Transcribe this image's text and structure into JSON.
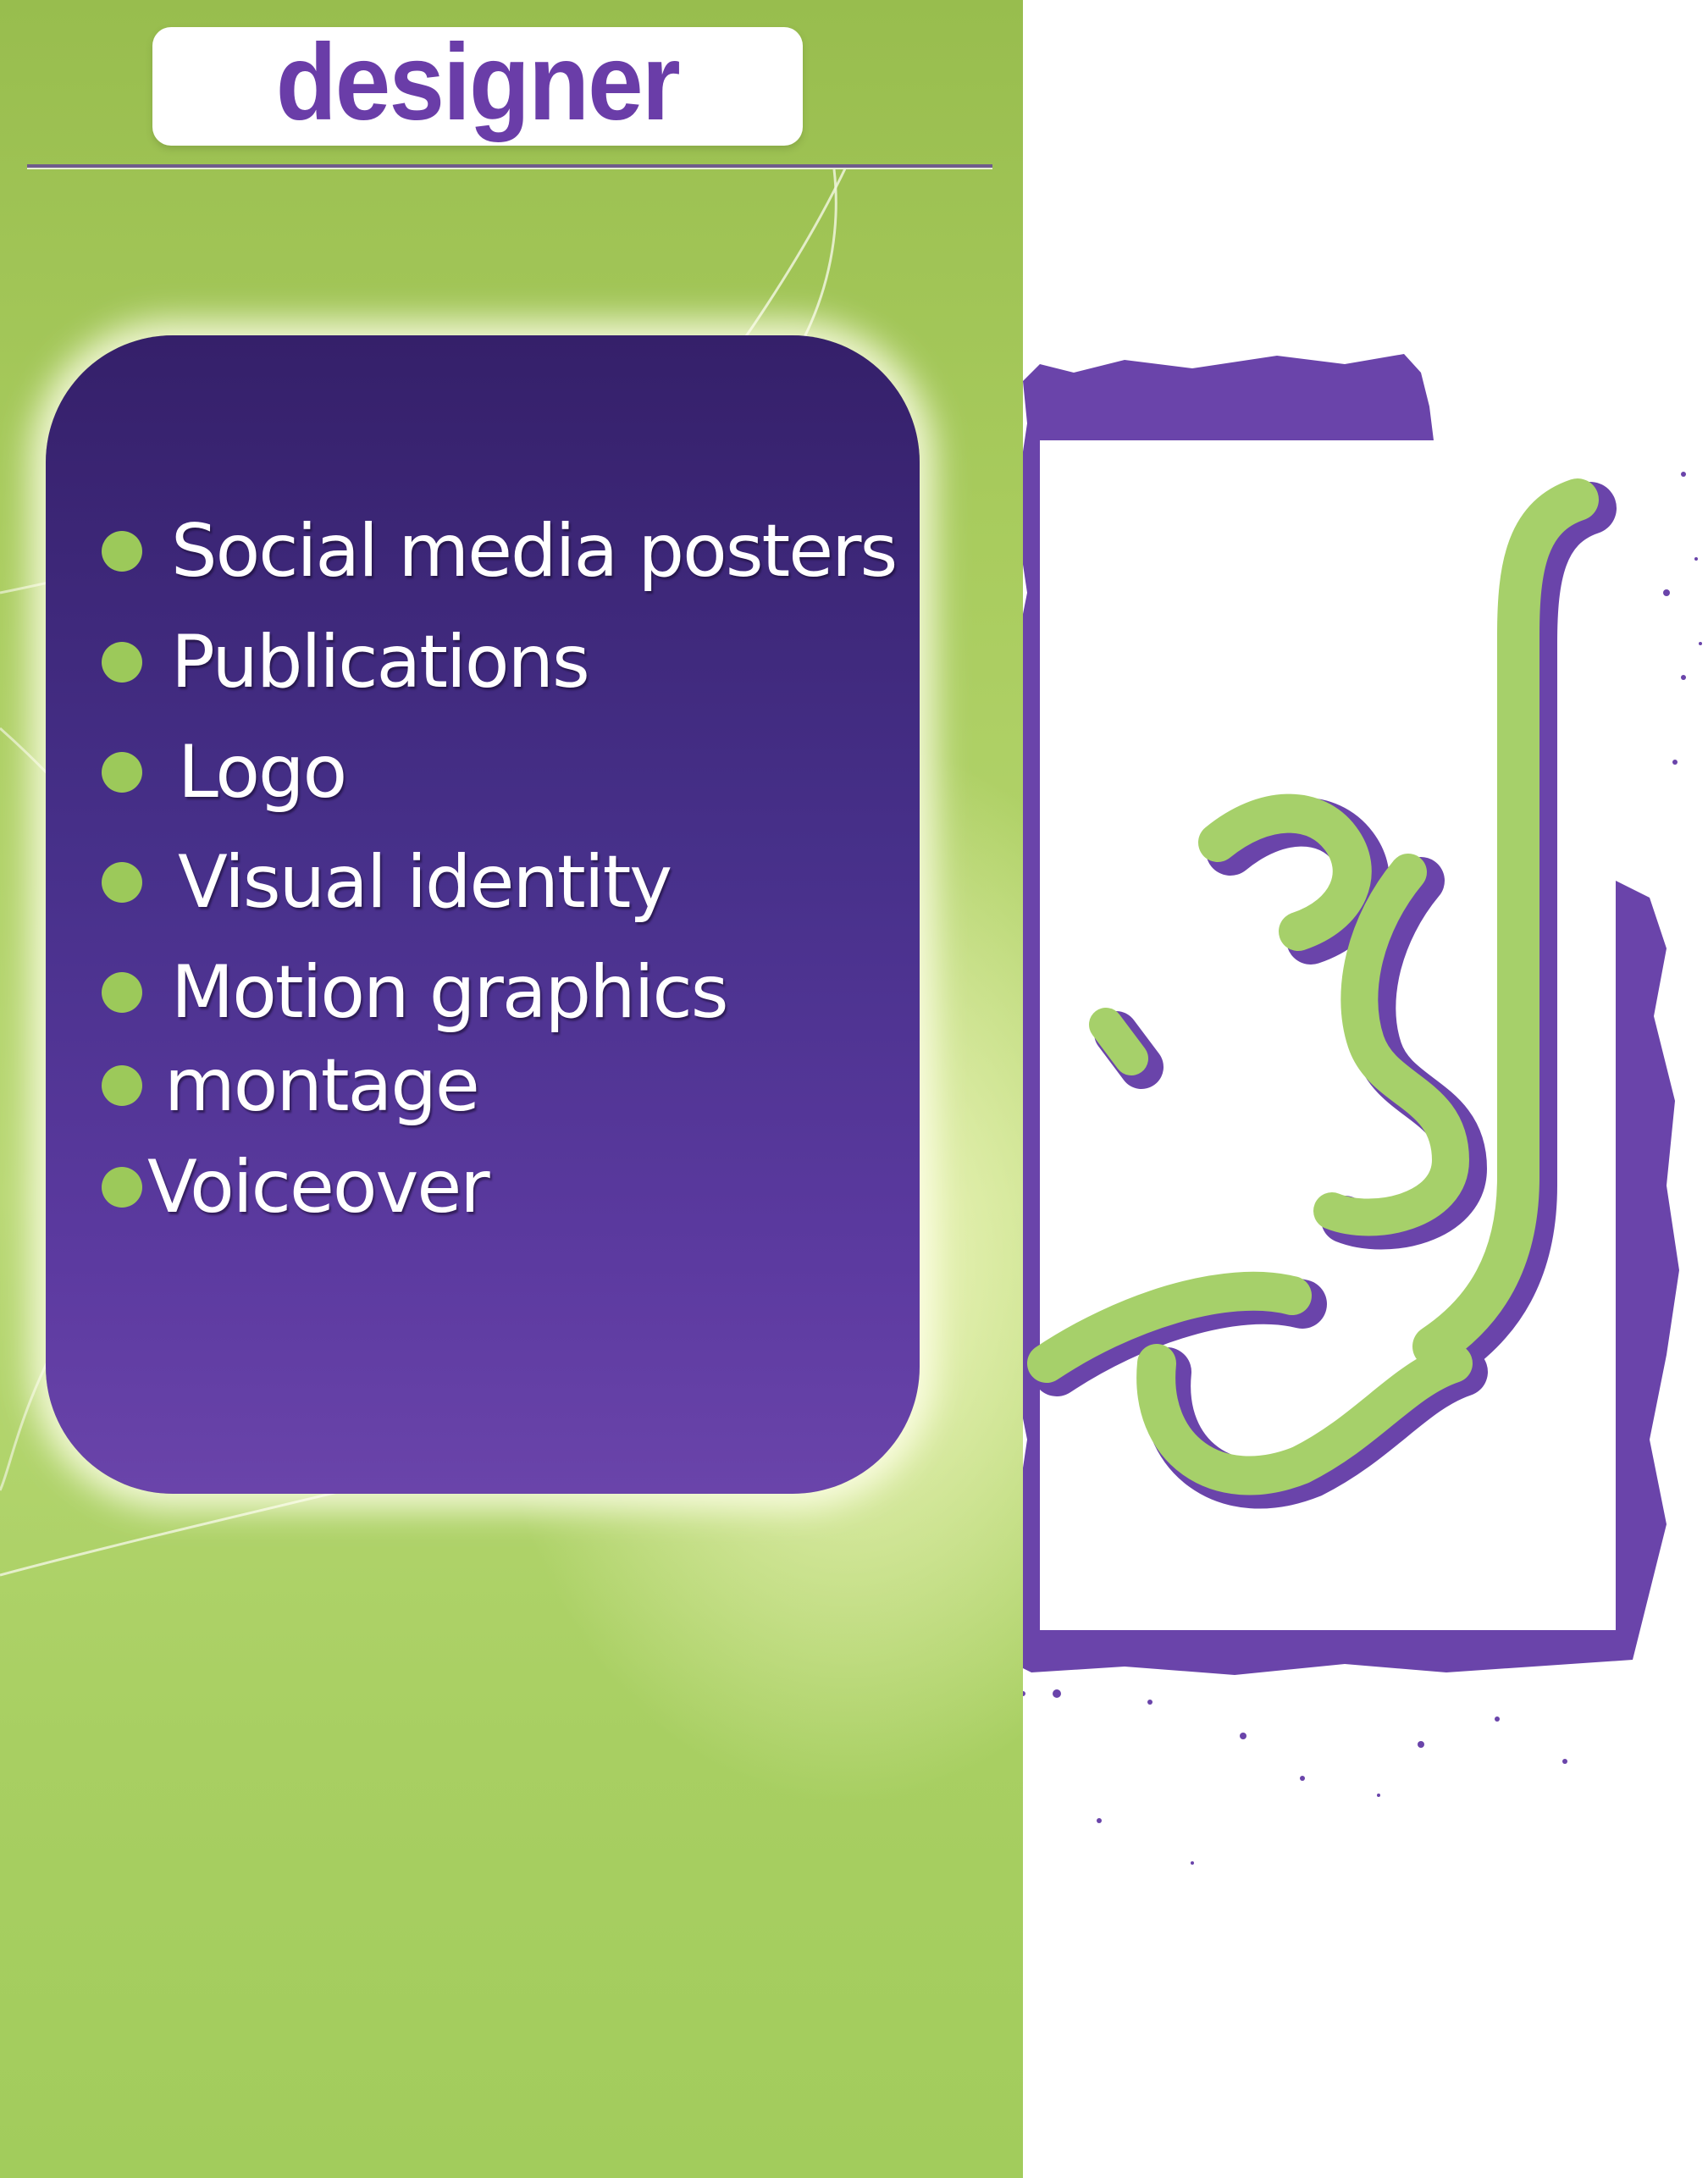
{
  "header": {
    "title": "designer"
  },
  "services": {
    "items": [
      {
        "label": "Social media posters"
      },
      {
        "label": "Publications"
      },
      {
        "label": "Logo"
      },
      {
        "label": "Visual identity"
      },
      {
        "label": "Motion graphics"
      },
      {
        "label": "montage"
      },
      {
        "label": "Voiceover"
      }
    ]
  },
  "colors": {
    "green_background": "#a9cc5e",
    "purple_card": "#47308a",
    "bullet_green": "#9cc95a",
    "title_purple": "#6a3da8",
    "logo_purple": "#6a44aa",
    "logo_green": "#a6d06a"
  },
  "logo": {
    "icon": "arabic-calligraphy-logo-icon"
  }
}
